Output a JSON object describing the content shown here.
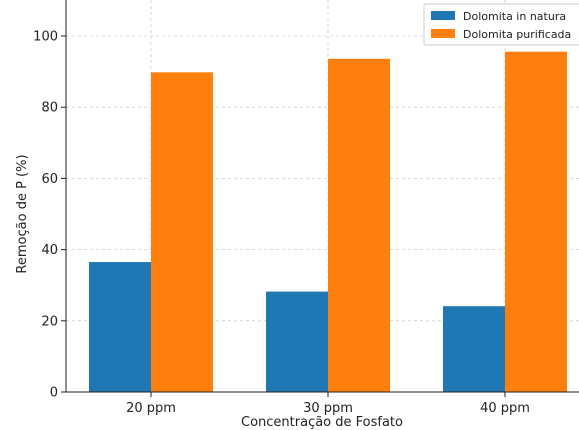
{
  "chart_data": {
    "type": "bar",
    "categories": [
      "20 ppm",
      "30 ppm",
      "40 ppm"
    ],
    "series": [
      {
        "name": "Dolomita in natura",
        "color": "#1f77b4",
        "values": [
          36.5,
          28.2,
          24.1
        ]
      },
      {
        "name": "Dolomita purificada",
        "color": "#ff7f0e",
        "values": [
          89.8,
          93.6,
          95.6
        ]
      }
    ],
    "xlabel": "Concentração de Fosfato",
    "ylabel": "Remoção de P (%)",
    "ylim": [
      0,
      100
    ],
    "yticks": [
      "0",
      "20",
      "40",
      "60",
      "80",
      "100"
    ],
    "grid": true,
    "legend_position": "top-right"
  }
}
